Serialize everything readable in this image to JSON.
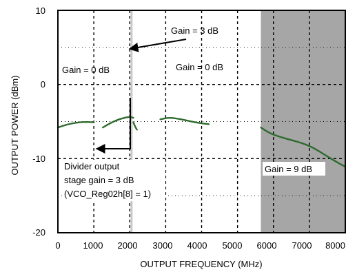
{
  "chart_data": {
    "type": "line",
    "title": "",
    "xlabel": "OUTPUT FREQUENCY (MHz)",
    "ylabel": "OUTPUT POWER (dBm)",
    "xlim": [
      0,
      8000
    ],
    "ylim": [
      -20,
      10
    ],
    "xticks": [
      0,
      1000,
      2000,
      3000,
      4000,
      5000,
      6000,
      7000,
      8000
    ],
    "yticks": [
      10,
      0,
      -10,
      -20
    ],
    "grid": true,
    "shaded_region": {
      "x_start": 5650,
      "x_end": 8000,
      "color": "#a6a6a6"
    },
    "marker_line": {
      "x": 2050,
      "color": "#c8c8c8"
    },
    "series": [
      {
        "color": "#2e6b2e",
        "segments": [
          {
            "x": [
              0,
              250,
              500,
              750,
              1000
            ],
            "y": [
              -5.8,
              -5.4,
              -5.15,
              -5.05,
              -5.1
            ]
          },
          {
            "x": [
              1250,
              1500,
              1750,
              2000,
              2100
            ],
            "y": [
              -5.8,
              -5.1,
              -4.6,
              -4.35,
              -4.5
            ]
          },
          {
            "x": [
              2100,
              2150,
              2200
            ],
            "y": [
              -5.1,
              -5.7,
              -6.1
            ]
          },
          {
            "x": [
              2850,
              3100,
              3400,
              3700,
              4000,
              4200
            ],
            "y": [
              -4.7,
              -4.45,
              -4.65,
              -5.0,
              -5.25,
              -5.35
            ]
          },
          {
            "x": [
              5650,
              5900,
              6200,
              6500,
              6800,
              7100,
              7400,
              7700,
              8000
            ],
            "y": [
              -5.8,
              -6.6,
              -7.1,
              -7.5,
              -7.9,
              -8.5,
              -9.4,
              -10.3,
              -11.1
            ]
          }
        ]
      }
    ],
    "annotations": [
      {
        "text": "Gain = 3 dB"
      },
      {
        "text": "Gain = 0 dB"
      },
      {
        "text": "Gain = 0 dB"
      },
      {
        "text": "Divider output"
      },
      {
        "text": "stage gain = 3 dB"
      },
      {
        "text": "(VCO_Reg02h[8] = 1)"
      },
      {
        "text": "Gain = 9 dB"
      }
    ]
  }
}
